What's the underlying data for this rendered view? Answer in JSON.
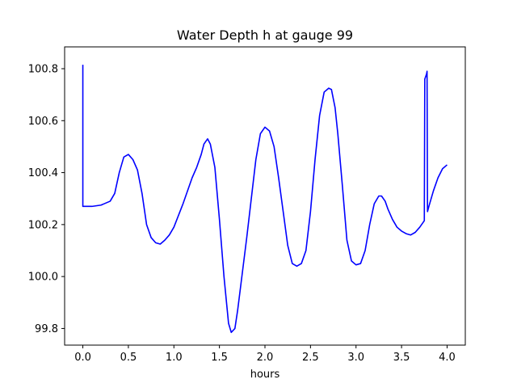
{
  "chart_data": {
    "type": "line",
    "title": "Water Depth h at gauge 99",
    "xlabel": "hours",
    "ylabel": "",
    "xlim": [
      -0.2,
      4.2
    ],
    "ylim": [
      99.736,
      100.884
    ],
    "grid": false,
    "legend": "none",
    "x_ticks": [
      0.0,
      0.5,
      1.0,
      1.5,
      2.0,
      2.5,
      3.0,
      3.5,
      4.0
    ],
    "x_tick_labels": [
      "0.0",
      "0.5",
      "1.0",
      "1.5",
      "2.0",
      "2.5",
      "3.0",
      "3.5",
      "4.0"
    ],
    "y_ticks": [
      99.8,
      100.0,
      100.2,
      100.4,
      100.6,
      100.8
    ],
    "y_tick_labels": [
      "99.8",
      "100.0",
      "100.2",
      "100.4",
      "100.6",
      "100.8"
    ],
    "series": [
      {
        "color": "#0000ff",
        "x": [
          0.0,
          0.0,
          0.005,
          0.1,
          0.2,
          0.3,
          0.35,
          0.4,
          0.45,
          0.5,
          0.55,
          0.6,
          0.65,
          0.7,
          0.75,
          0.8,
          0.85,
          0.9,
          0.95,
          1.0,
          1.1,
          1.2,
          1.25,
          1.3,
          1.33,
          1.37,
          1.4,
          1.45,
          1.5,
          1.55,
          1.6,
          1.63,
          1.67,
          1.7,
          1.8,
          1.9,
          1.95,
          2.0,
          2.05,
          2.1,
          2.15,
          2.2,
          2.25,
          2.3,
          2.35,
          2.4,
          2.45,
          2.5,
          2.55,
          2.6,
          2.65,
          2.7,
          2.73,
          2.77,
          2.8,
          2.85,
          2.9,
          2.95,
          3.0,
          3.05,
          3.1,
          3.15,
          3.2,
          3.25,
          3.28,
          3.32,
          3.35,
          3.4,
          3.45,
          3.5,
          3.55,
          3.6,
          3.65,
          3.7,
          3.75,
          3.755,
          3.76,
          3.775,
          3.78,
          3.785,
          3.8,
          3.85,
          3.9,
          3.95,
          4.0
        ],
        "y": [
          100.815,
          100.27,
          100.27,
          100.27,
          100.275,
          100.29,
          100.32,
          100.4,
          100.46,
          100.47,
          100.45,
          100.41,
          100.32,
          100.2,
          100.15,
          100.13,
          100.125,
          100.14,
          100.16,
          100.19,
          100.28,
          100.38,
          100.42,
          100.47,
          100.51,
          100.53,
          100.51,
          100.42,
          100.22,
          100.0,
          99.82,
          99.785,
          99.8,
          99.87,
          100.15,
          100.45,
          100.55,
          100.575,
          100.56,
          100.5,
          100.38,
          100.25,
          100.12,
          100.05,
          100.04,
          100.05,
          100.1,
          100.25,
          100.45,
          100.62,
          100.71,
          100.725,
          100.72,
          100.65,
          100.55,
          100.35,
          100.14,
          100.06,
          100.045,
          100.05,
          100.1,
          100.2,
          100.28,
          100.31,
          100.31,
          100.29,
          100.26,
          100.22,
          100.19,
          100.175,
          100.165,
          100.16,
          100.17,
          100.19,
          100.215,
          100.76,
          100.765,
          100.78,
          100.79,
          100.25,
          100.27,
          100.33,
          100.38,
          100.415,
          100.43
        ]
      }
    ]
  }
}
